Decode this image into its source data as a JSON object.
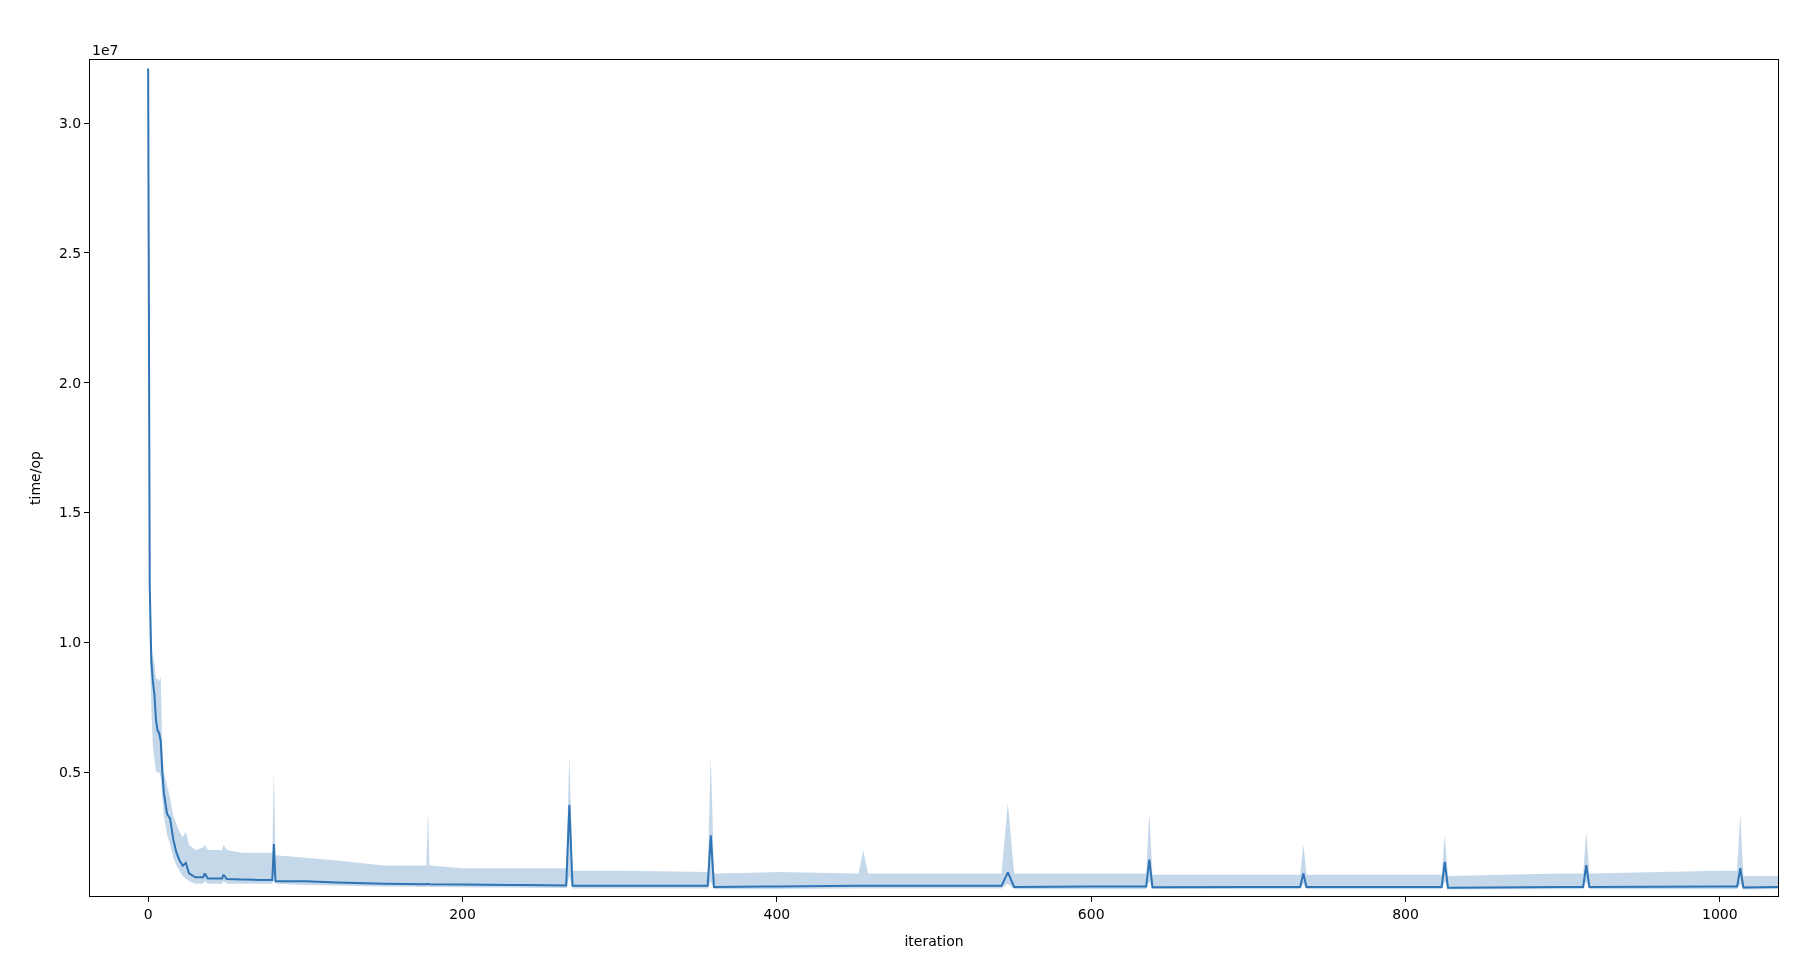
{
  "chart_data": {
    "type": "line",
    "xlabel": "iteration",
    "ylabel": "time/op",
    "annotations": [
      "1e7"
    ],
    "x": [
      0,
      1,
      2,
      3,
      4,
      5,
      6,
      7,
      8,
      9,
      10,
      12,
      14,
      16,
      18,
      20,
      22,
      24,
      26,
      30,
      35,
      36,
      38,
      47,
      48,
      50,
      60,
      70,
      79,
      80,
      81,
      100,
      120,
      150,
      177,
      178,
      179,
      200,
      240,
      266,
      268,
      270,
      300,
      356,
      358,
      360,
      400,
      452,
      455,
      458,
      500,
      543,
      547,
      551,
      600,
      635,
      637,
      639,
      700,
      733,
      735,
      737,
      800,
      823,
      825,
      827,
      900,
      913,
      915,
      917,
      1000,
      1011,
      1013,
      1015,
      1037
    ],
    "series": [
      {
        "color": "#2f74b5",
        "values": [
          3.21,
          1.22,
          0.93,
          0.85,
          0.8,
          0.7,
          0.66,
          0.65,
          0.62,
          0.5,
          0.42,
          0.34,
          0.32,
          0.24,
          0.19,
          0.16,
          0.14,
          0.15,
          0.11,
          0.095,
          0.095,
          0.11,
          0.09,
          0.09,
          0.105,
          0.088,
          0.087,
          0.085,
          0.085,
          0.223,
          0.08,
          0.08,
          0.075,
          0.07,
          0.068,
          0.07,
          0.068,
          0.067,
          0.065,
          0.063,
          0.373,
          0.062,
          0.062,
          0.062,
          0.257,
          0.058,
          0.06,
          0.062,
          0.062,
          0.062,
          0.062,
          0.062,
          0.114,
          0.058,
          0.06,
          0.06,
          0.163,
          0.057,
          0.058,
          0.058,
          0.11,
          0.058,
          0.058,
          0.058,
          0.154,
          0.055,
          0.058,
          0.058,
          0.142,
          0.058,
          0.06,
          0.06,
          0.13,
          0.056,
          0.058
        ],
        "lower": [
          3.21,
          1.0,
          0.75,
          0.6,
          0.55,
          0.5,
          0.5,
          0.5,
          0.48,
          0.4,
          0.33,
          0.26,
          0.22,
          0.17,
          0.14,
          0.12,
          0.1,
          0.09,
          0.08,
          0.07,
          0.07,
          0.08,
          0.07,
          0.07,
          0.08,
          0.07,
          0.07,
          0.07,
          0.07,
          0.1,
          0.07,
          0.065,
          0.063,
          0.06,
          0.058,
          0.06,
          0.058,
          0.057,
          0.055,
          0.054,
          0.1,
          0.052,
          0.052,
          0.052,
          0.08,
          0.05,
          0.05,
          0.052,
          0.052,
          0.052,
          0.052,
          0.052,
          0.07,
          0.05,
          0.05,
          0.05,
          0.08,
          0.05,
          0.05,
          0.05,
          0.07,
          0.05,
          0.05,
          0.05,
          0.08,
          0.048,
          0.05,
          0.05,
          0.08,
          0.05,
          0.05,
          0.05,
          0.07,
          0.048,
          0.05
        ],
        "upper": [
          3.21,
          1.25,
          1.0,
          0.95,
          0.92,
          0.86,
          0.86,
          0.85,
          0.87,
          0.6,
          0.5,
          0.45,
          0.4,
          0.33,
          0.3,
          0.27,
          0.25,
          0.27,
          0.22,
          0.2,
          0.21,
          0.22,
          0.2,
          0.2,
          0.22,
          0.2,
          0.19,
          0.19,
          0.19,
          0.51,
          0.18,
          0.17,
          0.16,
          0.14,
          0.14,
          0.35,
          0.14,
          0.13,
          0.13,
          0.13,
          0.568,
          0.12,
          0.12,
          0.115,
          0.568,
          0.11,
          0.115,
          0.11,
          0.2,
          0.11,
          0.11,
          0.11,
          0.382,
          0.11,
          0.11,
          0.11,
          0.346,
          0.105,
          0.105,
          0.105,
          0.221,
          0.105,
          0.105,
          0.105,
          0.26,
          0.1,
          0.11,
          0.11,
          0.271,
          0.11,
          0.12,
          0.12,
          0.342,
          0.1,
          0.1
        ]
      }
    ],
    "xlim": [
      -37,
      1037
    ],
    "ylim": [
      0.023,
      3.243
    ],
    "xticks": [
      0,
      200,
      400,
      600,
      800,
      1000
    ],
    "yticks": [
      {
        "value": 0.5,
        "label": "0.5"
      },
      {
        "value": 1,
        "label": "1.0"
      },
      {
        "value": 1.5,
        "label": "1.5"
      },
      {
        "value": 2,
        "label": "2.0"
      },
      {
        "value": 2.5,
        "label": "2.5"
      },
      {
        "value": 3,
        "label": "3.0"
      }
    ],
    "tick_labels": "xy"
  }
}
